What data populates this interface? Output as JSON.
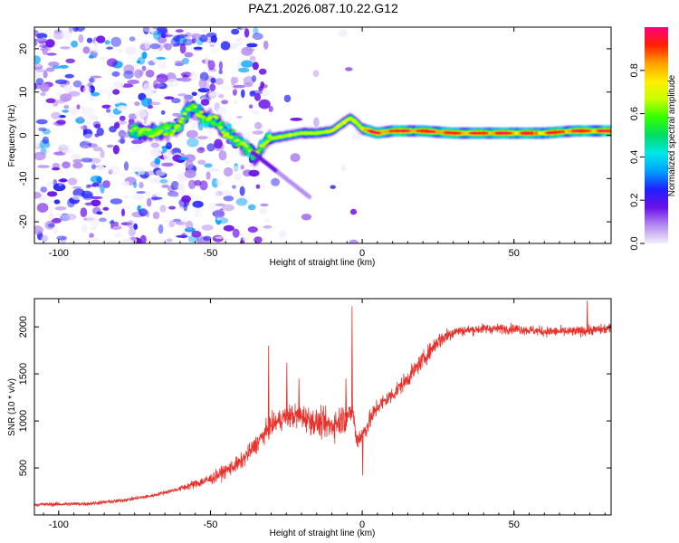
{
  "figure": {
    "title": "PAZ1.2026.087.10.22.G12"
  },
  "chart_data": [
    {
      "type": "heatmap",
      "name": "spectrogram",
      "xlabel": "Height of straight line (km)",
      "ylabel": "Frequency (Hz)",
      "xlim": [
        -108,
        82
      ],
      "ylim": [
        -25,
        25
      ],
      "x_ticks": [
        -100,
        -50,
        0,
        50
      ],
      "y_ticks": [
        -20,
        -10,
        0,
        10,
        20
      ],
      "x_tick_labels": [
        "-100",
        "-50",
        "0",
        "50"
      ],
      "y_tick_labels": [
        "-20",
        "-10",
        "0",
        "10",
        "20"
      ],
      "ridge": {
        "x": [
          -75,
          -70,
          -65,
          -60,
          -58,
          -55,
          -52,
          -48,
          -45,
          -42,
          -38,
          -35,
          -32,
          -28,
          -24,
          -20,
          -15,
          -10,
          -6,
          -4,
          -2,
          0,
          5,
          10,
          20,
          30,
          40,
          50,
          60,
          70,
          82
        ],
        "y": [
          1,
          0.5,
          1,
          2,
          6,
          6.5,
          4,
          3,
          1,
          -1,
          -3,
          -5,
          -1,
          -0.5,
          0,
          0.5,
          0.5,
          1,
          3,
          4,
          3,
          1.5,
          0.5,
          1,
          1,
          0.5,
          0.5,
          0.5,
          0.5,
          1,
          1
        ]
      },
      "colorbar": {
        "label": "Normalized spectral amplitude",
        "range": [
          0,
          1
        ],
        "ticks": [
          "0.0",
          "0.2",
          "0.4",
          "0.6",
          "0.8"
        ],
        "colors": [
          "#f3eefc",
          "#b48cf0",
          "#6a10e8",
          "#2020ff",
          "#00a0ff",
          "#00e6e6",
          "#00dd66",
          "#33ff00",
          "#c8ff00",
          "#ffee00",
          "#ffa000",
          "#ff2000",
          "#ff0080"
        ]
      }
    },
    {
      "type": "line",
      "name": "snr",
      "xlabel": "Height of straight line (km)",
      "ylabel": "SNR (10 * v/v)",
      "xlim": [
        -108,
        82
      ],
      "ylim": [
        0,
        2300
      ],
      "x_ticks": [
        -100,
        -50,
        0,
        50
      ],
      "y_ticks": [
        500,
        1000,
        1500,
        2000
      ],
      "x_tick_labels": [
        "-100",
        "-50",
        "0",
        "50"
      ],
      "y_tick_labels": [
        "500",
        "1000",
        "1500",
        "2000"
      ],
      "color": "#e8312b",
      "trend": {
        "x": [
          -108,
          -90,
          -80,
          -70,
          -60,
          -50,
          -40,
          -35,
          -30,
          -25,
          -20,
          -15,
          -10,
          -5,
          -3,
          -2,
          0,
          5,
          10,
          15,
          20,
          25,
          30,
          40,
          50,
          60,
          70,
          82
        ],
        "y": [
          110,
          120,
          150,
          200,
          280,
          380,
          560,
          750,
          950,
          1050,
          1050,
          980,
          950,
          1050,
          1100,
          800,
          850,
          1150,
          1280,
          1450,
          1650,
          1850,
          1950,
          1980,
          1980,
          1950,
          1950,
          1980
        ]
      },
      "spikes": [
        {
          "x": -3.5,
          "y": 2220
        },
        {
          "x": -31,
          "y": 1800
        },
        {
          "x": -25,
          "y": 1620
        },
        {
          "x": -5.5,
          "y": 1450
        },
        {
          "x": -21,
          "y": 1450
        },
        {
          "x": 0,
          "y": 420
        },
        {
          "x": 74,
          "y": 2280
        }
      ]
    }
  ]
}
